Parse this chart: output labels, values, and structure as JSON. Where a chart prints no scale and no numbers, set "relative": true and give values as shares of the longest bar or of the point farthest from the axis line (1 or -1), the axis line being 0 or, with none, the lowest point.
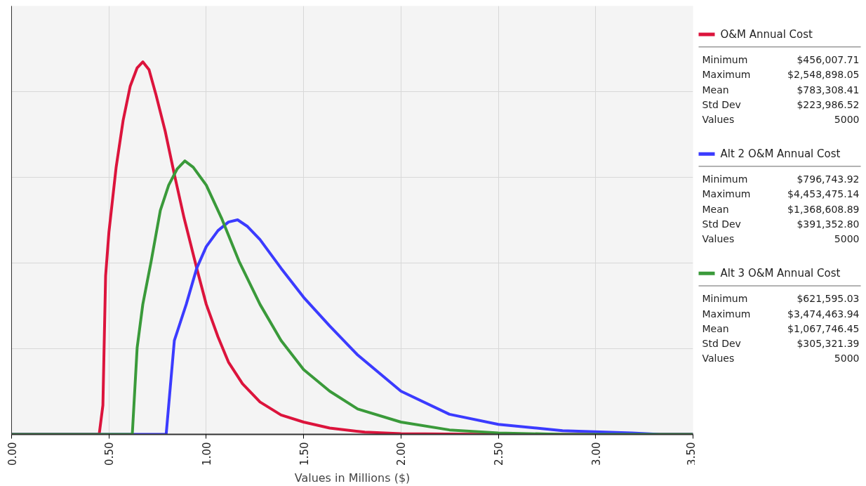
{
  "chart_data": {
    "type": "line",
    "relative": true,
    "xlabel": "Values in Millions ($)",
    "xlim": [
      0,
      3.5
    ],
    "xticks": [
      {
        "value": 0,
        "label": "0.00"
      },
      {
        "value": 0.5,
        "label": "0.50"
      },
      {
        "value": 1,
        "label": "1.00"
      },
      {
        "value": 1.5,
        "label": "1.50"
      },
      {
        "value": 2,
        "label": "2.00"
      },
      {
        "value": 2.5,
        "label": "2.50"
      },
      {
        "value": 3,
        "label": "3.00"
      },
      {
        "value": 3.5,
        "label": "3.50"
      }
    ],
    "tick_labels": "x",
    "grid": true,
    "legend": "right",
    "line_style": "solid",
    "series": [
      {
        "name": "O&M Annual Cost",
        "color": "#dc143c",
        "x": [
          0,
          0.45,
          0.469,
          0.483,
          0.5,
          0.537,
          0.573,
          0.609,
          0.645,
          0.674,
          0.706,
          0.742,
          0.789,
          0.836,
          0.886,
          0.951,
          1.0,
          1.06,
          1.114,
          1.186,
          1.276,
          1.384,
          1.5,
          1.634,
          1.814,
          2.0,
          2.465,
          3.5
        ],
        "values": [
          0,
          0,
          0.078,
          0.426,
          0.543,
          0.717,
          0.843,
          0.934,
          0.984,
          1.0,
          0.979,
          0.911,
          0.814,
          0.698,
          0.581,
          0.446,
          0.349,
          0.262,
          0.194,
          0.136,
          0.087,
          0.052,
          0.033,
          0.017,
          0.006,
          0.002,
          0,
          0
        ]
      },
      {
        "name": "Alt 2 O&M Annual Cost",
        "color": "#3b3bff",
        "x": [
          0,
          0.794,
          0.836,
          0.897,
          0.951,
          1.0,
          1.06,
          1.114,
          1.161,
          1.212,
          1.276,
          1.384,
          1.5,
          1.634,
          1.778,
          2.0,
          2.249,
          2.5,
          2.83,
          3.186,
          3.33,
          3.5
        ],
        "values": [
          0,
          0,
          0.252,
          0.349,
          0.446,
          0.504,
          0.547,
          0.57,
          0.576,
          0.558,
          0.523,
          0.446,
          0.368,
          0.291,
          0.213,
          0.116,
          0.054,
          0.027,
          0.01,
          0.004,
          0,
          0
        ]
      },
      {
        "name": "Alt 3 O&M Annual Cost",
        "color": "#3a9a3a",
        "x": [
          0,
          0.62,
          0.645,
          0.674,
          0.717,
          0.764,
          0.807,
          0.851,
          0.89,
          0.933,
          1.0,
          1.078,
          1.168,
          1.276,
          1.384,
          1.5,
          1.634,
          1.778,
          2.0,
          2.249,
          2.5,
          2.83,
          3.5
        ],
        "values": [
          0,
          0,
          0.233,
          0.349,
          0.465,
          0.601,
          0.669,
          0.713,
          0.734,
          0.717,
          0.669,
          0.581,
          0.465,
          0.349,
          0.252,
          0.174,
          0.116,
          0.068,
          0.033,
          0.012,
          0.004,
          0,
          0
        ]
      }
    ],
    "annotations": [
      "Minimum $456,007.71",
      "Maximum $2,548,898.05",
      "Mean $783,308.41",
      "Std Dev $223,986.52",
      "Values 5000",
      "Minimum $796,743.92",
      "Maximum $4,453,475.14",
      "Mean $1,368,608.89",
      "Std Dev $391,352.80",
      "Values 5000",
      "Minimum $621,595.03",
      "Maximum $3,474,463.94",
      "Mean $1,067,746.45",
      "Std Dev $305,321.39",
      "Values 5000"
    ]
  }
}
